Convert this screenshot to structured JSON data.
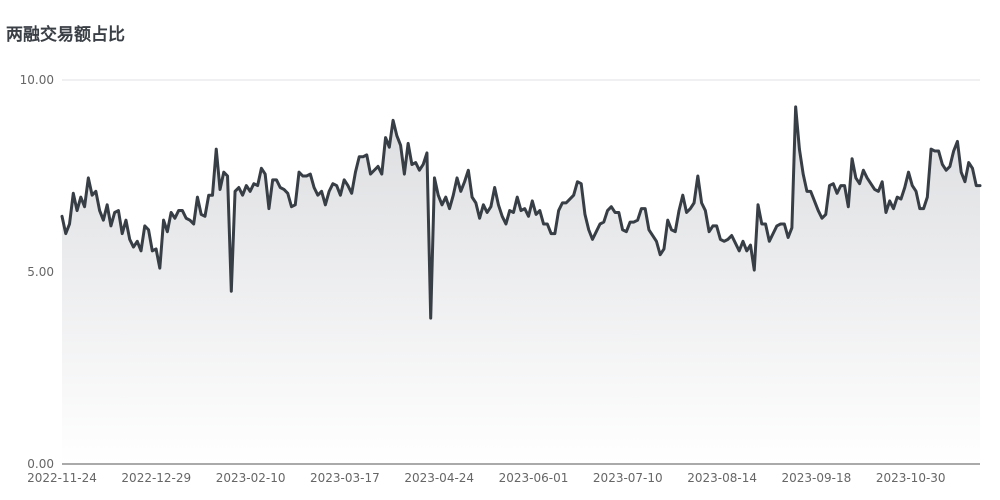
{
  "chart_title": "两融交易额占比",
  "chart_data": {
    "type": "area",
    "title": "两融交易额占比",
    "xlabel": "",
    "ylabel": "",
    "ylim": [
      0,
      10
    ],
    "y_ticks": [
      "0.00",
      "5.00",
      "10.00"
    ],
    "x_ticks": [
      "2022-11-24",
      "2022-12-29",
      "2023-02-10",
      "2023-03-17",
      "2023-04-24",
      "2023-06-01",
      "2023-07-10",
      "2023-08-14",
      "2023-09-18",
      "2023-10-30"
    ],
    "grid": true,
    "legend": "none",
    "colors": {
      "line": "#383e45",
      "fill_top": "#dcdde0",
      "fill_bottom": "#ffffff",
      "grid": "#e0e0e6"
    },
    "values": [
      6.45,
      6.0,
      6.25,
      7.05,
      6.6,
      6.95,
      6.7,
      7.45,
      7.0,
      7.1,
      6.6,
      6.35,
      6.75,
      6.2,
      6.55,
      6.6,
      6.0,
      6.35,
      5.85,
      5.65,
      5.8,
      5.55,
      6.2,
      6.1,
      5.55,
      5.6,
      5.1,
      6.35,
      6.05,
      6.55,
      6.4,
      6.6,
      6.6,
      6.4,
      6.35,
      6.25,
      6.95,
      6.5,
      6.45,
      7.0,
      7.0,
      8.2,
      7.15,
      7.6,
      7.5,
      4.5,
      7.1,
      7.2,
      7.0,
      7.25,
      7.1,
      7.3,
      7.25,
      7.7,
      7.55,
      6.65,
      7.4,
      7.4,
      7.2,
      7.15,
      7.05,
      6.7,
      6.75,
      7.6,
      7.5,
      7.5,
      7.55,
      7.2,
      7.0,
      7.1,
      6.75,
      7.1,
      7.3,
      7.25,
      7.0,
      7.4,
      7.25,
      7.05,
      7.6,
      8.0,
      8.0,
      8.05,
      7.55,
      7.65,
      7.75,
      7.55,
      8.5,
      8.25,
      8.95,
      8.55,
      8.3,
      7.55,
      8.35,
      7.8,
      7.85,
      7.65,
      7.8,
      8.1,
      3.8,
      7.45,
      7.0,
      6.75,
      6.95,
      6.65,
      7.0,
      7.45,
      7.1,
      7.35,
      7.65,
      6.95,
      6.8,
      6.4,
      6.75,
      6.55,
      6.7,
      7.2,
      6.75,
      6.45,
      6.25,
      6.6,
      6.55,
      6.95,
      6.6,
      6.65,
      6.45,
      6.85,
      6.5,
      6.6,
      6.25,
      6.25,
      6.0,
      6.0,
      6.6,
      6.8,
      6.8,
      6.9,
      7.0,
      7.35,
      7.3,
      6.5,
      6.1,
      5.85,
      6.05,
      6.25,
      6.3,
      6.6,
      6.7,
      6.55,
      6.55,
      6.1,
      6.05,
      6.3,
      6.3,
      6.35,
      6.65,
      6.65,
      6.1,
      5.95,
      5.8,
      5.45,
      5.6,
      6.35,
      6.1,
      6.05,
      6.6,
      7.0,
      6.55,
      6.65,
      6.8,
      7.5,
      6.8,
      6.6,
      6.05,
      6.2,
      6.2,
      5.85,
      5.8,
      5.85,
      5.95,
      5.75,
      5.55,
      5.8,
      5.55,
      5.7,
      5.05,
      6.75,
      6.25,
      6.25,
      5.8,
      6.0,
      6.2,
      6.25,
      6.25,
      5.9,
      6.15,
      9.3,
      8.2,
      7.55,
      7.1,
      7.1,
      6.85,
      6.6,
      6.4,
      6.5,
      7.25,
      7.3,
      7.05,
      7.25,
      7.25,
      6.7,
      7.95,
      7.45,
      7.3,
      7.65,
      7.45,
      7.3,
      7.15,
      7.1,
      7.35,
      6.55,
      6.85,
      6.65,
      6.95,
      6.9,
      7.2,
      7.6,
      7.25,
      7.1,
      6.65,
      6.65,
      6.95,
      8.2,
      8.15,
      8.15,
      7.8,
      7.65,
      7.75,
      8.15,
      8.4,
      7.6,
      7.35,
      7.85,
      7.7,
      7.25,
      7.25
    ]
  }
}
